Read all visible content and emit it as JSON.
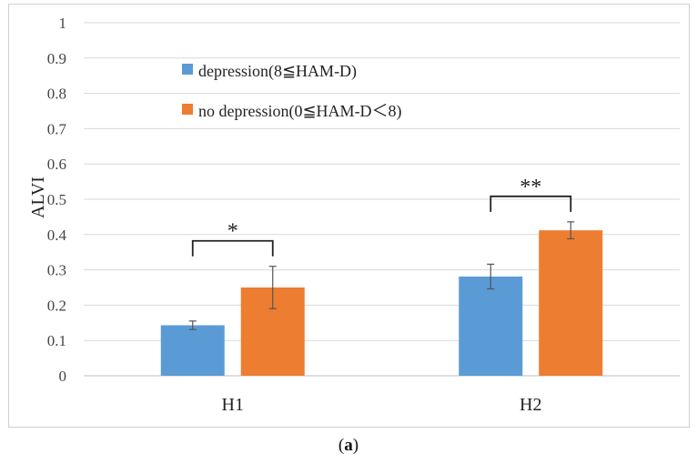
{
  "chart_data": {
    "type": "bar",
    "title": "",
    "xlabel": "",
    "ylabel": "ALVI",
    "categories": [
      "H1",
      "H2"
    ],
    "ylim": [
      0,
      1
    ],
    "yticks": [
      "0",
      "0.1",
      "0.2",
      "0.3",
      "0.4",
      "0.5",
      "0.6",
      "0.7",
      "0.8",
      "0.9",
      "1"
    ],
    "grid": true,
    "legend_position": "top-left",
    "series": [
      {
        "name": "depression(8≦HAM-D)",
        "values": [
          0.143,
          0.281
        ],
        "error": [
          0.012,
          0.035
        ],
        "color": "#5B9BD5"
      },
      {
        "name": "no depression(0≦HAM-D＜8)",
        "values": [
          0.25,
          0.412
        ],
        "error": [
          0.06,
          0.024
        ],
        "color": "#ED7D31"
      }
    ],
    "significance": [
      "*",
      "**"
    ]
  },
  "caption": {
    "open": "(",
    "letter": "a",
    "close": ")"
  }
}
